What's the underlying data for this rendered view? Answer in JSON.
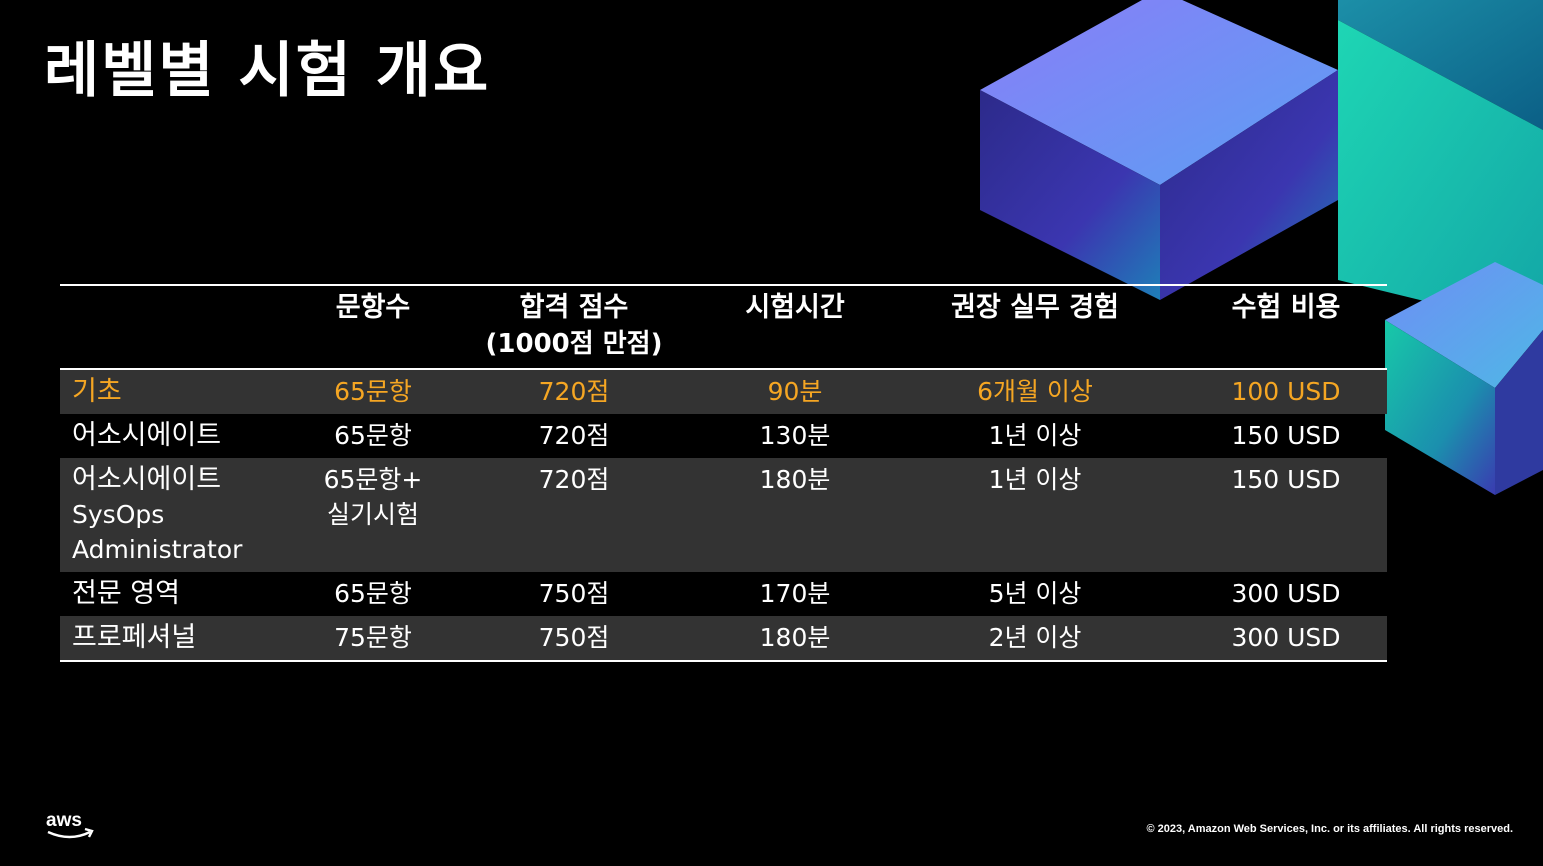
{
  "title": "레벨별 시험 개요",
  "colors": {
    "highlight": "#f5a623",
    "row_gray": "#333333",
    "background": "#000000"
  },
  "table": {
    "headers": [
      "",
      "문항수",
      "합격 점수",
      "시험시간",
      "권장 실무 경험",
      "수험 비용"
    ],
    "header_sub": "(1000점 만점)",
    "rows": [
      {
        "level": "기초",
        "questions": "65문항",
        "score": "720점",
        "time": "90분",
        "experience": "6개월 이상",
        "cost": "100 USD"
      },
      {
        "level": "어소시에이트",
        "questions": "65문항",
        "score": "720점",
        "time": "130분",
        "experience": "1년 이상",
        "cost": "150 USD"
      },
      {
        "level": "어소시에이트",
        "level_sub1": "SysOps",
        "level_sub2": "Administrator",
        "questions": "65문항+",
        "questions_sub": "실기시험",
        "score": "720점",
        "time": "180분",
        "experience": "1년 이상",
        "cost": "150 USD"
      },
      {
        "level": "전문 영역",
        "questions": "65문항",
        "score": "750점",
        "time": "170분",
        "experience": "5년 이상",
        "cost": "300 USD"
      },
      {
        "level": "프로페셔널",
        "questions": "75문항",
        "score": "750점",
        "time": "180분",
        "experience": "2년 이상",
        "cost": "300 USD"
      }
    ]
  },
  "footer": {
    "logo_text": "aws",
    "copyright": "© 2023, Amazon Web Services, Inc. or its affiliates. All rights reserved."
  }
}
